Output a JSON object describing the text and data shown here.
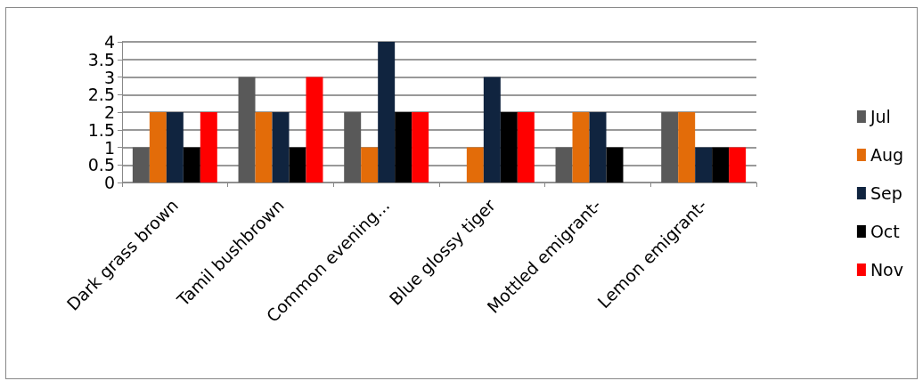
{
  "chart_data": {
    "type": "bar",
    "categories": [
      "Dark grass brown",
      "Tamil bushbrown",
      "Common evening...",
      "Blue glossy tiger",
      "Mottled emigrant-",
      "Lemon emigrant-"
    ],
    "series": [
      {
        "name": "Jul",
        "color": "#595959",
        "values": [
          1,
          3,
          2,
          0,
          1,
          2
        ]
      },
      {
        "name": "Aug",
        "color": "#e36c09",
        "values": [
          2,
          2,
          1,
          1,
          2,
          2
        ]
      },
      {
        "name": "Sep",
        "color": "#10243f",
        "values": [
          2,
          2,
          4,
          3,
          2,
          1
        ]
      },
      {
        "name": "Oct",
        "color": "#000000",
        "values": [
          1,
          1,
          2,
          2,
          1,
          1
        ]
      },
      {
        "name": "Nov",
        "color": "#ff0000",
        "values": [
          2,
          3,
          2,
          2,
          0,
          1
        ]
      }
    ],
    "ylim": [
      0,
      4
    ],
    "yticks": [
      0,
      0.5,
      1,
      1.5,
      2,
      2.5,
      3,
      3.5,
      4
    ],
    "grid": "y",
    "legend": "right"
  }
}
